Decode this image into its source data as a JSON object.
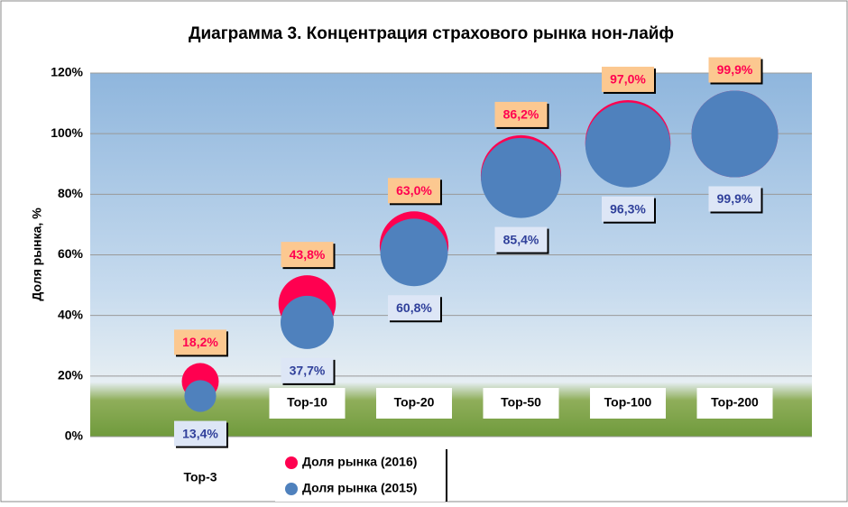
{
  "chart_data": {
    "type": "bubble",
    "title": "Диаграмма 3. Концентрация страхового рынка нон-лайф",
    "y_label": "Доля рынка, %",
    "categories": [
      "Top-3",
      "Top-10",
      "Top-20",
      "Top-50",
      "Top-100",
      "Top-200"
    ],
    "series": [
      {
        "name": "Доля рынка (2016)",
        "color": "#ff0050",
        "values": [
          18.2,
          43.8,
          63.0,
          86.2,
          97.0,
          99.9
        ],
        "value_labels": [
          "18,2%",
          "43,8%",
          "63,0%",
          "86,2%",
          "97,0%",
          "99,9%"
        ]
      },
      {
        "name": "Доля рынка (2015)",
        "color": "#4f81bd",
        "values": [
          13.4,
          37.7,
          60.8,
          85.4,
          96.3,
          99.9
        ],
        "value_labels": [
          "13,4%",
          "37,7%",
          "60,8%",
          "85,4%",
          "96,3%",
          "99,9%"
        ]
      }
    ],
    "ylim": [
      0,
      120
    ],
    "yticks": [
      {
        "value": 0,
        "label": "0%"
      },
      {
        "value": 20,
        "label": "20%"
      },
      {
        "value": 40,
        "label": "40%"
      },
      {
        "value": 60,
        "label": "60%"
      },
      {
        "value": 80,
        "label": "80%"
      },
      {
        "value": 100,
        "label": "100%"
      },
      {
        "value": 120,
        "label": "120%"
      }
    ],
    "grid": true
  }
}
